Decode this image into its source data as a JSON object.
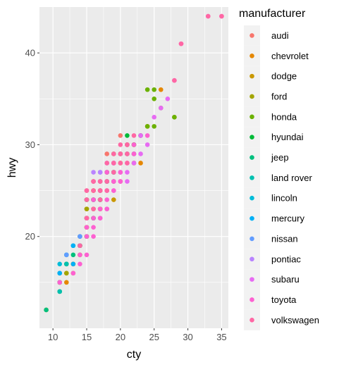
{
  "chart_data": {
    "type": "scatter",
    "title": "",
    "xlabel": "cty",
    "ylabel": "hwy",
    "xlim": [
      8.0,
      36.0
    ],
    "ylim": [
      10.0,
      45.0
    ],
    "x_ticks": [
      10,
      15,
      20,
      25,
      30,
      35
    ],
    "y_ticks": [
      20,
      30,
      40
    ],
    "grid": true,
    "legend": {
      "title": "manufacturer",
      "position": "right"
    },
    "series": [
      {
        "name": "audi",
        "color": "#F8766D",
        "points": [
          [
            18,
            29
          ],
          [
            21,
            29
          ],
          [
            20,
            31
          ],
          [
            21,
            30
          ],
          [
            16,
            26
          ],
          [
            18,
            26
          ],
          [
            18,
            27
          ],
          [
            16,
            25
          ],
          [
            15,
            25
          ],
          [
            17,
            25
          ],
          [
            19,
            27
          ],
          [
            15,
            24
          ]
        ]
      },
      {
        "name": "chevrolet",
        "color": "#E58700",
        "points": [
          [
            15,
            20
          ],
          [
            14,
            19
          ],
          [
            11,
            14
          ],
          [
            14,
            20
          ],
          [
            12,
            17
          ],
          [
            15,
            23
          ],
          [
            16,
            26
          ],
          [
            17,
            25
          ],
          [
            18,
            26
          ],
          [
            22,
            30
          ],
          [
            19,
            26
          ],
          [
            20,
            29
          ],
          [
            17,
            23
          ],
          [
            15,
            22
          ],
          [
            16,
            24
          ],
          [
            11,
            15
          ],
          [
            12,
            15
          ],
          [
            13,
            17
          ],
          [
            14,
            19
          ],
          [
            15,
            22
          ],
          [
            22,
            28
          ],
          [
            23,
            28
          ],
          [
            20,
            26
          ],
          [
            21,
            30
          ],
          [
            24,
            32
          ],
          [
            26,
            36
          ]
        ]
      },
      {
        "name": "dodge",
        "color": "#C99800",
        "points": [
          [
            14,
            19
          ],
          [
            15,
            22
          ],
          [
            12,
            17
          ],
          [
            13,
            16
          ],
          [
            11,
            15
          ],
          [
            16,
            24
          ],
          [
            17,
            23
          ],
          [
            16,
            25
          ],
          [
            15,
            21
          ],
          [
            11,
            16
          ],
          [
            13,
            17
          ],
          [
            14,
            18
          ],
          [
            15,
            21
          ],
          [
            9,
            12
          ],
          [
            12,
            16
          ],
          [
            16,
            22
          ],
          [
            18,
            26
          ],
          [
            19,
            24
          ],
          [
            20,
            28
          ],
          [
            21,
            29
          ],
          [
            22,
            30
          ],
          [
            23,
            31
          ],
          [
            24,
            32
          ],
          [
            17,
            24
          ],
          [
            15,
            20
          ]
        ]
      },
      {
        "name": "ford",
        "color": "#A3A500",
        "points": [
          [
            11,
            15
          ],
          [
            15,
            21
          ],
          [
            15,
            23
          ],
          [
            13,
            17
          ],
          [
            12,
            16
          ],
          [
            14,
            18
          ],
          [
            16,
            24
          ],
          [
            17,
            25
          ],
          [
            18,
            26
          ],
          [
            19,
            27
          ],
          [
            15,
            20
          ],
          [
            14,
            19
          ],
          [
            22,
            29
          ],
          [
            28,
            33
          ],
          [
            15,
            22
          ],
          [
            16,
            23
          ]
        ]
      },
      {
        "name": "honda",
        "color": "#6BB100",
        "points": [
          [
            24,
            32
          ],
          [
            25,
            32
          ],
          [
            23,
            31
          ],
          [
            25,
            36
          ],
          [
            24,
            36
          ],
          [
            26,
            34
          ],
          [
            28,
            33
          ],
          [
            25,
            35
          ],
          [
            19,
            29
          ]
        ]
      },
      {
        "name": "hyundai",
        "color": "#00BA38",
        "points": [
          [
            18,
            26
          ],
          [
            17,
            24
          ],
          [
            21,
            30
          ],
          [
            16,
            24
          ],
          [
            19,
            27
          ],
          [
            20,
            29
          ],
          [
            21,
            31
          ],
          [
            19,
            26
          ],
          [
            17,
            26
          ],
          [
            15,
            24
          ],
          [
            14,
            19
          ],
          [
            18,
            27
          ],
          [
            22,
            30
          ],
          [
            16,
            22
          ]
        ]
      },
      {
        "name": "jeep",
        "color": "#00BF7D",
        "points": [
          [
            9,
            12
          ],
          [
            11,
            14
          ],
          [
            14,
            19
          ],
          [
            15,
            20
          ],
          [
            16,
            22
          ],
          [
            17,
            24
          ],
          [
            13,
            18
          ],
          [
            12,
            17
          ]
        ]
      },
      {
        "name": "land rover",
        "color": "#00C0AF",
        "points": [
          [
            11,
            15
          ],
          [
            12,
            18
          ],
          [
            11,
            14
          ],
          [
            12,
            17
          ]
        ]
      },
      {
        "name": "lincoln",
        "color": "#00BCD8",
        "points": [
          [
            11,
            17
          ],
          [
            12,
            18
          ],
          [
            11,
            16
          ],
          [
            13,
            19
          ]
        ]
      },
      {
        "name": "mercury",
        "color": "#00B0F6",
        "points": [
          [
            11,
            16
          ],
          [
            13,
            19
          ],
          [
            14,
            20
          ],
          [
            13,
            17
          ]
        ]
      },
      {
        "name": "nissan",
        "color": "#619CFF",
        "points": [
          [
            12,
            18
          ],
          [
            14,
            20
          ],
          [
            19,
            27
          ],
          [
            21,
            29
          ],
          [
            23,
            31
          ],
          [
            22,
            29
          ],
          [
            19,
            28
          ],
          [
            18,
            26
          ],
          [
            17,
            27
          ],
          [
            15,
            22
          ],
          [
            16,
            24
          ],
          [
            20,
            27
          ],
          [
            14,
            19
          ]
        ]
      },
      {
        "name": "pontiac",
        "color": "#B983FF",
        "points": [
          [
            16,
            27
          ],
          [
            17,
            27
          ],
          [
            18,
            28
          ],
          [
            18,
            26
          ],
          [
            19,
            28
          ],
          [
            16,
            26
          ],
          [
            17,
            25
          ]
        ]
      },
      {
        "name": "subaru",
        "color": "#E76BF3",
        "points": [
          [
            18,
            25
          ],
          [
            19,
            26
          ],
          [
            20,
            26
          ],
          [
            21,
            27
          ],
          [
            22,
            28
          ],
          [
            23,
            29
          ],
          [
            24,
            30
          ],
          [
            20,
            27
          ],
          [
            21,
            26
          ],
          [
            19,
            25
          ],
          [
            18,
            23
          ],
          [
            17,
            22
          ],
          [
            25,
            33
          ],
          [
            26,
            34
          ],
          [
            27,
            35
          ],
          [
            23,
            31
          ]
        ]
      },
      {
        "name": "toyota",
        "color": "#FD61D1",
        "points": [
          [
            15,
            20
          ],
          [
            16,
            20
          ],
          [
            16,
            22
          ],
          [
            17,
            22
          ],
          [
            18,
            23
          ],
          [
            14,
            17
          ],
          [
            15,
            18
          ],
          [
            13,
            16
          ],
          [
            11,
            15
          ],
          [
            15,
            21
          ],
          [
            16,
            21
          ],
          [
            18,
            24
          ],
          [
            19,
            25
          ],
          [
            20,
            26
          ],
          [
            21,
            28
          ],
          [
            22,
            29
          ],
          [
            24,
            31
          ],
          [
            28,
            37
          ],
          [
            29,
            41
          ],
          [
            33,
            44
          ],
          [
            35,
            44
          ],
          [
            21,
            30
          ],
          [
            20,
            29
          ],
          [
            19,
            28
          ],
          [
            17,
            26
          ],
          [
            18,
            27
          ],
          [
            16,
            24
          ],
          [
            15,
            22
          ],
          [
            14,
            18
          ],
          [
            17,
            23
          ],
          [
            18,
            25
          ],
          [
            19,
            26
          ],
          [
            20,
            27
          ],
          [
            22,
            30
          ]
        ]
      },
      {
        "name": "volkswagen",
        "color": "#FF67A4",
        "points": [
          [
            21,
            29
          ],
          [
            20,
            30
          ],
          [
            19,
            28
          ],
          [
            18,
            28
          ],
          [
            17,
            26
          ],
          [
            16,
            25
          ],
          [
            15,
            24
          ],
          [
            19,
            29
          ],
          [
            20,
            29
          ],
          [
            21,
            30
          ],
          [
            22,
            31
          ],
          [
            33,
            44
          ],
          [
            35,
            44
          ],
          [
            29,
            41
          ],
          [
            28,
            37
          ],
          [
            17,
            24
          ],
          [
            18,
            25
          ],
          [
            16,
            23
          ],
          [
            15,
            22
          ],
          [
            14,
            19
          ],
          [
            21,
            28
          ],
          [
            20,
            28
          ],
          [
            19,
            27
          ],
          [
            18,
            26
          ],
          [
            17,
            25
          ],
          [
            16,
            26
          ],
          [
            15,
            25
          ]
        ]
      }
    ]
  }
}
